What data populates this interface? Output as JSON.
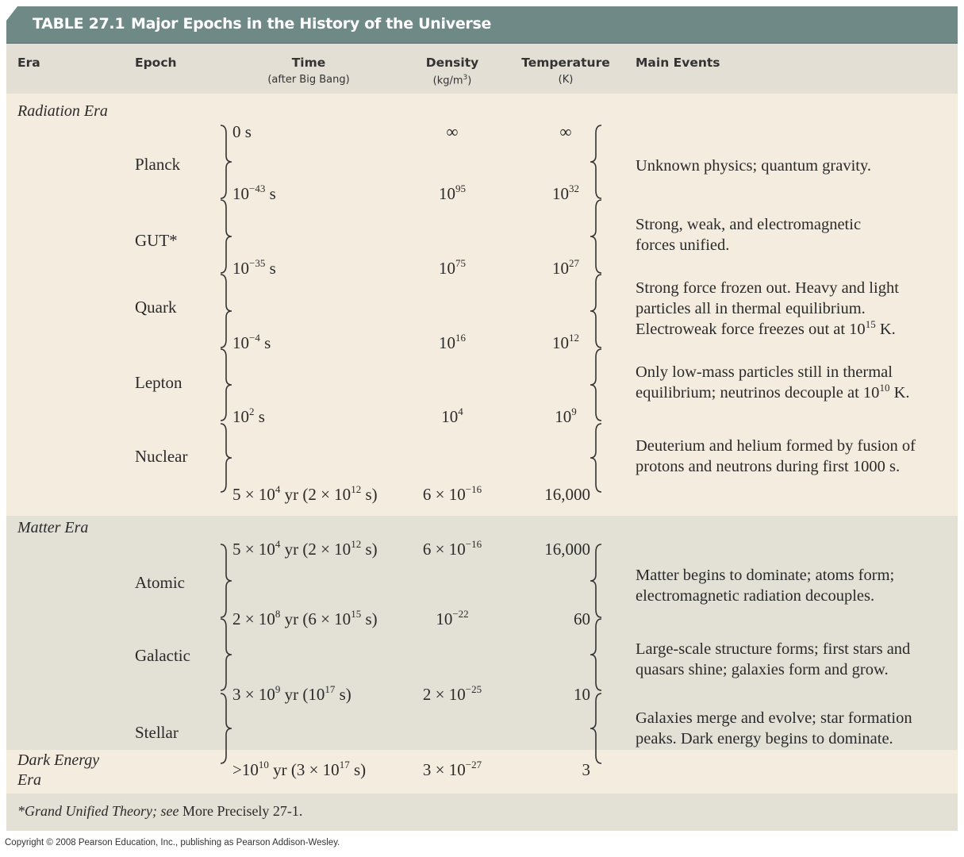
{
  "title": {
    "number": "TABLE 27.1",
    "text": "Major Epochs in the History of the Universe"
  },
  "colors": {
    "title_bar": "#6f8a86",
    "header_row": "#e3dfd4",
    "radiation_bg": "#f4ecdf",
    "matter_bg": "#e3e0d6"
  },
  "headers": {
    "era": "Era",
    "epoch": "Epoch",
    "time": "Time",
    "time_sub": "(after Big Bang)",
    "density": "Density",
    "density_sub_pre": "(kg/m",
    "density_sub_sup": "3",
    "density_sub_post": ")",
    "temperature": "Temperature",
    "temperature_sub": "(K)",
    "events": "Main Events"
  },
  "eras": [
    "Radiation Era",
    "Matter Era",
    "Dark Energy Era"
  ],
  "boundaries": [
    {
      "time": [
        [
          "0 s"
        ]
      ],
      "density": [
        [
          "∞"
        ]
      ],
      "temperature": [
        [
          "∞"
        ]
      ]
    },
    {
      "time": [
        [
          "10"
        ],
        [
          "−43",
          "sup"
        ],
        [
          " s"
        ]
      ],
      "density": [
        [
          "10"
        ],
        [
          "95",
          "sup"
        ]
      ],
      "temperature": [
        [
          "10"
        ],
        [
          "32",
          "sup"
        ]
      ]
    },
    {
      "time": [
        [
          "10"
        ],
        [
          "−35",
          "sup"
        ],
        [
          " s"
        ]
      ],
      "density": [
        [
          "10"
        ],
        [
          "75",
          "sup"
        ]
      ],
      "temperature": [
        [
          "10"
        ],
        [
          "27",
          "sup"
        ]
      ]
    },
    {
      "time": [
        [
          "10"
        ],
        [
          "−4",
          "sup"
        ],
        [
          " s"
        ]
      ],
      "density": [
        [
          "10"
        ],
        [
          "16",
          "sup"
        ]
      ],
      "temperature": [
        [
          "10"
        ],
        [
          "12",
          "sup"
        ]
      ]
    },
    {
      "time": [
        [
          "10"
        ],
        [
          "2",
          "sup"
        ],
        [
          " s"
        ]
      ],
      "density": [
        [
          "10"
        ],
        [
          "4",
          "sup"
        ]
      ],
      "temperature": [
        [
          "10"
        ],
        [
          "9",
          "sup"
        ]
      ]
    },
    {
      "time": [
        [
          "5 × 10"
        ],
        [
          "4",
          "sup"
        ],
        [
          " yr (2 × 10"
        ],
        [
          "12",
          "sup"
        ],
        [
          " s)"
        ]
      ],
      "density": [
        [
          "6 × 10"
        ],
        [
          "−16",
          "sup"
        ]
      ],
      "temperature": [
        [
          "16,000"
        ]
      ]
    },
    {
      "time": [
        [
          "5 × 10"
        ],
        [
          "4",
          "sup"
        ],
        [
          " yr (2 × 10"
        ],
        [
          "12",
          "sup"
        ],
        [
          " s)"
        ]
      ],
      "density": [
        [
          "6 × 10"
        ],
        [
          "−16",
          "sup"
        ]
      ],
      "temperature": [
        [
          "16,000"
        ]
      ]
    },
    {
      "time": [
        [
          "2 × 10"
        ],
        [
          "8",
          "sup"
        ],
        [
          " yr (6 × 10"
        ],
        [
          "15",
          "sup"
        ],
        [
          " s)"
        ]
      ],
      "density": [
        [
          "10"
        ],
        [
          "−22",
          "sup"
        ]
      ],
      "temperature": [
        [
          "60"
        ]
      ]
    },
    {
      "time": [
        [
          "3 × 10"
        ],
        [
          "9",
          "sup"
        ],
        [
          " yr (10"
        ],
        [
          "17",
          "sup"
        ],
        [
          " s)"
        ]
      ],
      "density": [
        [
          "2 × 10"
        ],
        [
          "−25",
          "sup"
        ]
      ],
      "temperature": [
        [
          "10"
        ]
      ]
    },
    {
      "time": [
        [
          ">10"
        ],
        [
          "10",
          "sup"
        ],
        [
          " yr (3 × 10"
        ],
        [
          "17",
          "sup"
        ],
        [
          " s)"
        ]
      ],
      "density": [
        [
          "3 × 10"
        ],
        [
          "−27",
          "sup"
        ]
      ],
      "temperature": [
        [
          "3"
        ]
      ]
    }
  ],
  "epochs": [
    {
      "name": "Planck",
      "events": [
        [
          [
            "Unknown physics; quantum gravity."
          ]
        ]
      ]
    },
    {
      "name": "GUT*",
      "events": [
        [
          [
            "Strong, weak, and electromagnetic"
          ]
        ],
        [
          [
            "forces unified."
          ]
        ]
      ]
    },
    {
      "name": "Quark",
      "events": [
        [
          [
            "Strong force frozen out. Heavy and light"
          ]
        ],
        [
          [
            "particles all in thermal equilibrium."
          ]
        ],
        [
          [
            "Electroweak force freezes out at 10"
          ],
          [
            "15",
            "sup"
          ],
          [
            " K."
          ]
        ]
      ]
    },
    {
      "name": "Lepton",
      "events": [
        [
          [
            "Only low-mass particles still in thermal"
          ]
        ],
        [
          [
            "equilibrium; neutrinos decouple at 10"
          ],
          [
            "10",
            "sup"
          ],
          [
            " K."
          ]
        ]
      ]
    },
    {
      "name": "Nuclear",
      "events": [
        [
          [
            "Deuterium and helium formed by fusion of"
          ]
        ],
        [
          [
            "protons and neutrons during first 1000 s."
          ]
        ]
      ]
    },
    {
      "name": "Atomic",
      "events": [
        [
          [
            "Matter begins to dominate; atoms form;"
          ]
        ],
        [
          [
            "electromagnetic radiation decouples."
          ]
        ]
      ]
    },
    {
      "name": "Galactic",
      "events": [
        [
          [
            "Large-scale structure forms; first stars and"
          ]
        ],
        [
          [
            "quasars shine; galaxies form and grow."
          ]
        ]
      ]
    },
    {
      "name": "Stellar",
      "events": [
        [
          [
            "Galaxies merge and evolve; star formation"
          ]
        ],
        [
          [
            "peaks. Dark energy begins to dominate."
          ]
        ]
      ]
    }
  ],
  "footnote": {
    "italic": "*Grand Unified Theory; see ",
    "normal": "More Precisely 27-1."
  },
  "copyright": "Copyright © 2008 Pearson Education, Inc., publishing as Pearson Addison-Wesley."
}
